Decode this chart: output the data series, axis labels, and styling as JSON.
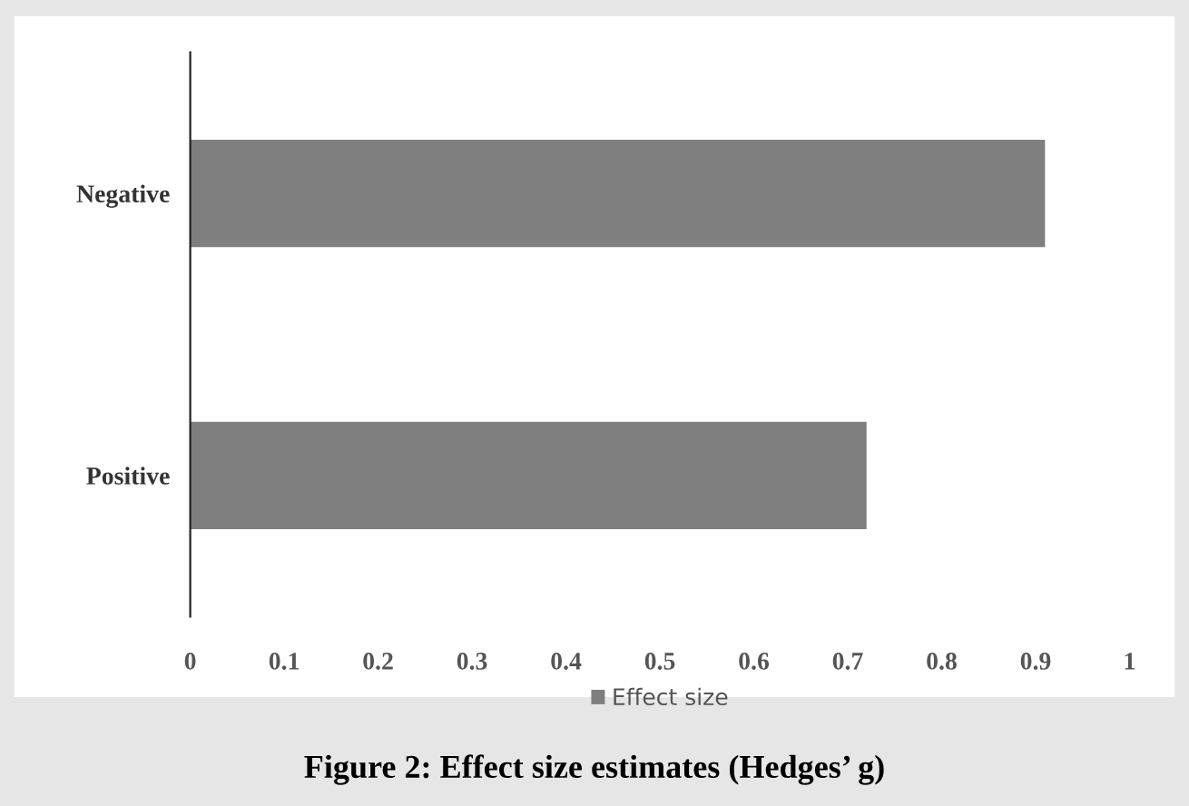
{
  "chart_data": {
    "type": "bar",
    "orientation": "horizontal",
    "categories": [
      "Negative",
      "Positive"
    ],
    "series": [
      {
        "name": "Effect size",
        "color": "#7f7f7f",
        "values": [
          0.91,
          0.72
        ]
      }
    ],
    "xlim": [
      0,
      1
    ],
    "xticks": [
      0,
      0.1,
      0.2,
      0.3,
      0.4,
      0.5,
      0.6,
      0.7,
      0.8,
      0.9,
      1
    ],
    "grid": false,
    "legend": "bottom",
    "annotations": [
      "Figure 2: Effect size estimates (Hedges’ g)"
    ]
  }
}
